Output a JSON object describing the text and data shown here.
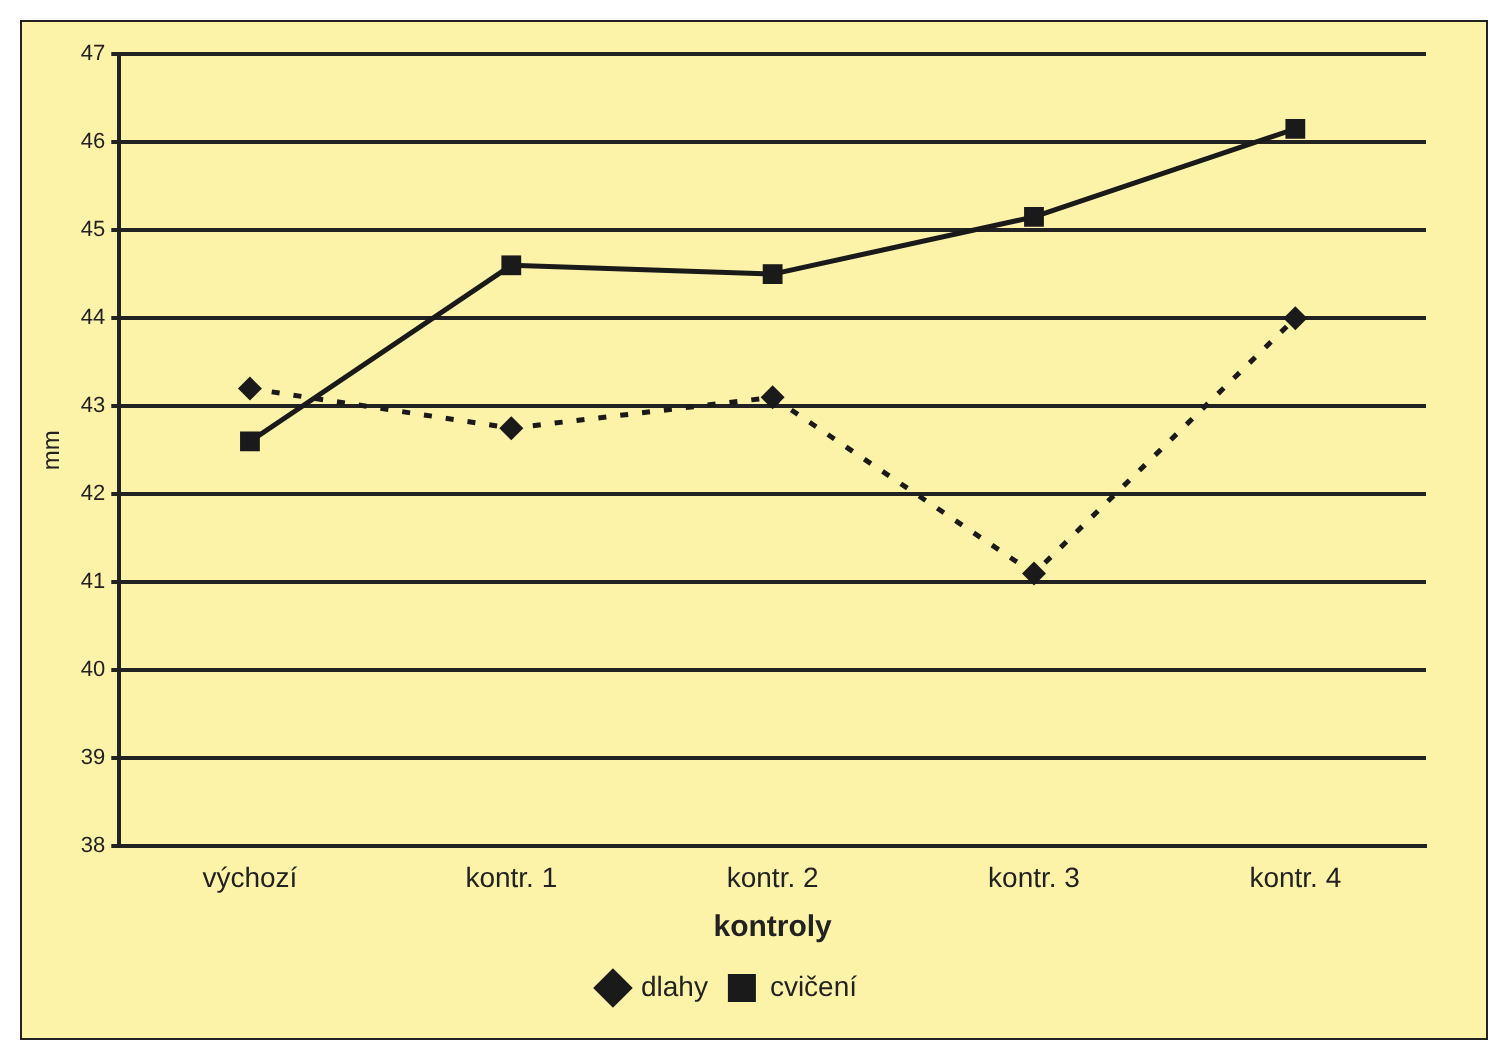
{
  "chart_data": {
    "type": "line",
    "xlabel": "kontroly",
    "ylabel": "mm",
    "categories": [
      "výchozí",
      "kontr. 1",
      "kontr. 2",
      "kontr. 3",
      "kontr. 4"
    ],
    "series": [
      {
        "name": "dlahy",
        "color": "#1a1a1a",
        "values": [
          43.2,
          42.75,
          43.1,
          41.1,
          44.0
        ],
        "marker": "diamond",
        "line_style": "dotted"
      },
      {
        "name": "cvičení",
        "color": "#1a1a1a",
        "values": [
          42.6,
          44.6,
          44.5,
          45.15,
          46.15
        ],
        "marker": "square",
        "line_style": "solid"
      }
    ],
    "ylim": [
      38,
      47
    ],
    "yticks": [
      38,
      39,
      40,
      41,
      42,
      43,
      44,
      45,
      46,
      47
    ],
    "grid": "y",
    "legend": "bottom"
  }
}
